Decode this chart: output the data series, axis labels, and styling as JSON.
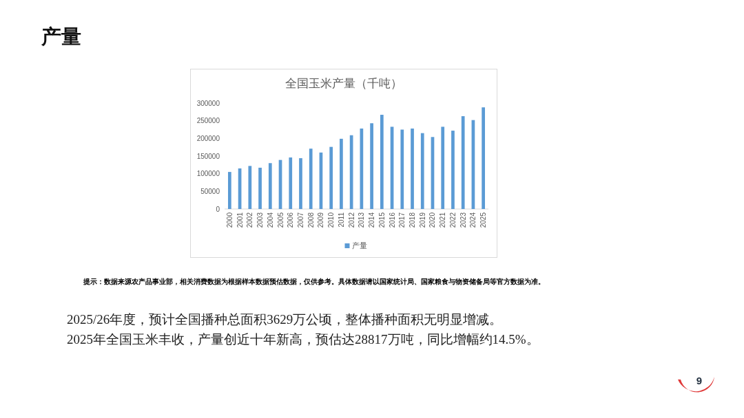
{
  "chart_data": {
    "type": "bar",
    "title": "全国玉米产量（千吨）",
    "categories": [
      "2000",
      "2001",
      "2002",
      "2003",
      "2004",
      "2005",
      "2006",
      "2007",
      "2008",
      "2009",
      "2010",
      "2011",
      "2012",
      "2013",
      "2014",
      "2015",
      "2016",
      "2017",
      "2018",
      "2019",
      "2020",
      "2021",
      "2022",
      "2023",
      "2024",
      "2025"
    ],
    "series": [
      {
        "name": "产量",
        "color": "#5b9bd5",
        "values": [
          105000,
          115000,
          122000,
          117000,
          130000,
          139000,
          146000,
          144000,
          171000,
          160000,
          176000,
          199000,
          209000,
          228000,
          243000,
          267000,
          233000,
          225000,
          228000,
          215000,
          204000,
          233000,
          222000,
          263000,
          252000,
          288000
        ]
      }
    ],
    "ylim": [
      0,
      300000
    ],
    "yticks": [
      0,
      50000,
      100000,
      150000,
      200000,
      250000,
      300000
    ],
    "legend": "bottom",
    "annotations": [
      "产量",
      "提示：数据来源农产品事业部，相关消费数据为根据样本数据预估数据，仅供参考。具体数据请以国家统计局、国家粮食与物资储备局等官方数据为准。",
      "2025/26年度，预计全国播种总面积3629万公顷，整体播种面积无明显增减。",
      "2025年全国玉米丰收，产量创近十年新高，预估达28817万吨，同比增幅约14.5%。",
      "9"
    ]
  }
}
